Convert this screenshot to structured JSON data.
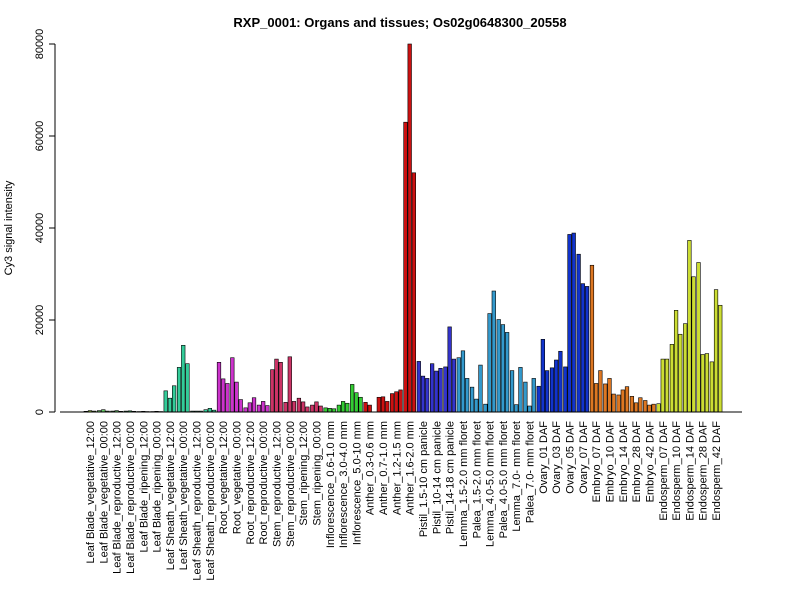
{
  "chart_data": {
    "type": "bar",
    "title": "RXP_0001: Organs and tissues; Os02g0648300_20558",
    "ylabel": "Cy3 signal intensity",
    "xlabel": "",
    "ylim": [
      0,
      80000
    ],
    "yticks": [
      0,
      20000,
      40000,
      60000,
      80000
    ],
    "grid": false,
    "legend": "none",
    "groups": [
      {
        "label": "Leaf Blade_vegetative_12:00",
        "color": "#99CC33",
        "values": [
          150,
          300,
          200
        ]
      },
      {
        "label": "Leaf Blade_vegetative_00:00",
        "color": "#66CC66",
        "values": [
          300,
          500,
          200
        ]
      },
      {
        "label": "Leaf Blade_reproductive_12:00",
        "color": "#66CC66",
        "values": [
          200,
          300,
          150
        ]
      },
      {
        "label": "Leaf Blade_reproductive_00:00",
        "color": "#33CC66",
        "values": [
          200,
          250,
          150
        ]
      },
      {
        "label": "Leaf Blade_ripening_12:00",
        "color": "#33CC99",
        "values": [
          100,
          150,
          100
        ]
      },
      {
        "label": "Leaf Blade_ripening_00:00",
        "color": "#33CC99",
        "values": [
          100,
          150,
          100
        ]
      },
      {
        "label": "Leaf Sheath_vegetative_12:00",
        "color": "#33CC99",
        "values": [
          4600,
          3000,
          5700
        ]
      },
      {
        "label": "Leaf Sheath_vegetative_00:00",
        "color": "#33CC99",
        "values": [
          9700,
          14500,
          10500
        ]
      },
      {
        "label": "Leaf Sheath_reproductive_12:00",
        "color": "#33CC99",
        "values": [
          200,
          200,
          200
        ]
      },
      {
        "label": "Leaf Sheath_reproductive_00:00",
        "color": "#33CC99",
        "values": [
          500,
          800,
          400
        ]
      },
      {
        "label": "Root_vegetative_12:00",
        "color": "#CC33CC",
        "values": [
          10800,
          7200,
          6200
        ]
      },
      {
        "label": "Root_vegetative_00:00",
        "color": "#CC33CC",
        "values": [
          11800,
          6500,
          2700
        ]
      },
      {
        "label": "Root_reproductive_12:00",
        "color": "#CC33CC",
        "values": [
          900,
          2000,
          3100
        ]
      },
      {
        "label": "Root_reproductive_00:00",
        "color": "#CC33CC",
        "values": [
          1500,
          2300,
          1400
        ]
      },
      {
        "label": "Stem_reproductive_12:00",
        "color": "#CC3366",
        "values": [
          9200,
          11500,
          10800
        ]
      },
      {
        "label": "Stem_reproductive_00:00",
        "color": "#CC3366",
        "values": [
          2100,
          12000,
          2300
        ]
      },
      {
        "label": "Stem_ripening_12:00",
        "color": "#CC3366",
        "values": [
          3000,
          2200,
          1100
        ]
      },
      {
        "label": "Stem_ripening_00:00",
        "color": "#CC3366",
        "values": [
          1500,
          2200,
          1300
        ]
      },
      {
        "label": "Inflorescence_0.6-1.0 mm",
        "color": "#33CC33",
        "values": [
          900,
          800,
          700
        ]
      },
      {
        "label": "Inflorescence_3.0-4.0 mm",
        "color": "#33CC33",
        "values": [
          1500,
          2300,
          1900
        ]
      },
      {
        "label": "Inflorescence_5.0-10 mm",
        "color": "#33CC33",
        "values": [
          6000,
          4200,
          3200
        ]
      },
      {
        "label": "Anther_0.3-0.6 mm",
        "color": "#CC1111",
        "values": [
          2100,
          1500,
          0
        ]
      },
      {
        "label": "Anther_0.7-1.0 mm",
        "color": "#CC1111",
        "values": [
          3200,
          3300,
          2300
        ]
      },
      {
        "label": "Anther_1.2-1.5 mm",
        "color": "#CC1111",
        "values": [
          4000,
          4400,
          4800
        ]
      },
      {
        "label": "Anther_1.6-2.0 mm",
        "color": "#CC1111",
        "values": [
          63000,
          80000,
          52000
        ]
      },
      {
        "label": "Pistil_1.5-10 cm panicle",
        "color": "#3333CC",
        "values": [
          11000,
          7800,
          7300
        ]
      },
      {
        "label": "Pistil_10-14 cm panicle",
        "color": "#3333CC",
        "values": [
          10500,
          8900,
          9500
        ]
      },
      {
        "label": "Pistil_14-18 cm panicle",
        "color": "#3333CC",
        "values": [
          9800,
          18500,
          11500
        ]
      },
      {
        "label": "Lemma_1.5-2.0 mm floret",
        "color": "#3399CC",
        "values": [
          11800,
          13300,
          7300
        ]
      },
      {
        "label": "Palea_1.5-2.0 mm floret",
        "color": "#3399CC",
        "values": [
          5400,
          2800,
          10200
        ]
      },
      {
        "label": "Lemma_4.0-5.0 mm floret",
        "color": "#3399CC",
        "values": [
          1700,
          21400,
          26300
        ]
      },
      {
        "label": "Palea_4.0-5.0 mm floret",
        "color": "#3399CC",
        "values": [
          20100,
          19000,
          17300
        ]
      },
      {
        "label": "Lemma_7.0- mm floret",
        "color": "#3399CC",
        "values": [
          9000,
          1600,
          9700
        ]
      },
      {
        "label": "Palea_7.0- mm floret",
        "color": "#3399CC",
        "values": [
          6500,
          1300,
          7300
        ]
      },
      {
        "label": "Ovary_01 DAF",
        "color": "#1133CC",
        "values": [
          5600,
          15800,
          9000
        ]
      },
      {
        "label": "Ovary_03 DAF",
        "color": "#1133CC",
        "values": [
          9600,
          11300,
          13200
        ]
      },
      {
        "label": "Ovary_05 DAF",
        "color": "#1133CC",
        "values": [
          9800,
          38600,
          38900
        ]
      },
      {
        "label": "Ovary_07 DAF",
        "color": "#1133CC",
        "values": [
          34300,
          27900,
          27300
        ]
      },
      {
        "label": "Embryo_07 DAF",
        "color": "#DD7722",
        "values": [
          31900,
          6200,
          9000
        ]
      },
      {
        "label": "Embryo_10 DAF",
        "color": "#DD7722",
        "values": [
          6100,
          7300,
          3900
        ]
      },
      {
        "label": "Embryo_14 DAF",
        "color": "#DD7722",
        "values": [
          3700,
          4800,
          5500
        ]
      },
      {
        "label": "Embryo_28 DAF",
        "color": "#DD7722",
        "values": [
          3400,
          2000,
          3100
        ]
      },
      {
        "label": "Embryo_42 DAF",
        "color": "#DD7722",
        "values": [
          2500,
          1500,
          1700
        ]
      },
      {
        "label": "Endosperm_07 DAF",
        "color": "#CCDD33",
        "values": [
          1800,
          11500,
          11500
        ]
      },
      {
        "label": "Endosperm_10 DAF",
        "color": "#CCDD33",
        "values": [
          14700,
          22100,
          16900
        ]
      },
      {
        "label": "Endosperm_14 DAF",
        "color": "#CCDD33",
        "values": [
          19200,
          37300,
          29400
        ]
      },
      {
        "label": "Endosperm_28 DAF",
        "color": "#CCDD33",
        "values": [
          32500,
          12500,
          12700
        ]
      },
      {
        "label": "Endosperm_42 DAF",
        "color": "#CCDD33",
        "values": [
          10900,
          26600,
          23200
        ]
      }
    ]
  }
}
